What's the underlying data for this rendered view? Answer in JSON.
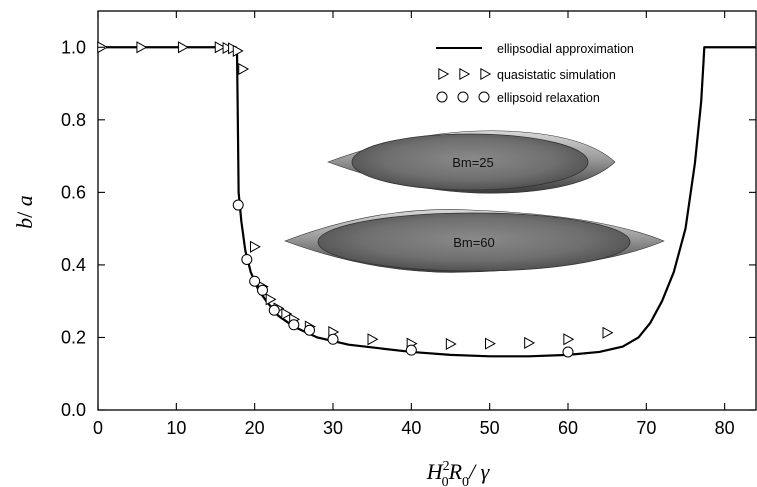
{
  "chart_data": {
    "type": "line",
    "xlabel_parts": {
      "H": "H",
      "sup": "2",
      "sub0": "0",
      "R": "R",
      "sub1": "0",
      "tail": "/ γ"
    },
    "ylabel_parts": {
      "b": "b",
      "slash": "/ ",
      "a": "a"
    },
    "xlim": [
      0,
      84
    ],
    "ylim": [
      0,
      1.1
    ],
    "xticks": [
      0,
      10,
      20,
      30,
      40,
      50,
      60,
      70,
      80
    ],
    "yticks": [
      0.0,
      0.2,
      0.4,
      0.6,
      0.8,
      1.0
    ],
    "grid": false,
    "legend_position": "top-right",
    "series": [
      {
        "name": "ellipsodial approximation",
        "style": "line",
        "color": "#000000",
        "points": [
          [
            0,
            1.0
          ],
          [
            17.6,
            1.0
          ],
          [
            17.75,
            0.98
          ],
          [
            17.85,
            0.8
          ],
          [
            17.95,
            0.6
          ],
          [
            18.3,
            0.52
          ],
          [
            18.8,
            0.44
          ],
          [
            19.5,
            0.38
          ],
          [
            20.5,
            0.33
          ],
          [
            21.5,
            0.3
          ],
          [
            23,
            0.26
          ],
          [
            25,
            0.23
          ],
          [
            28,
            0.2
          ],
          [
            32,
            0.18
          ],
          [
            36,
            0.17
          ],
          [
            40,
            0.16
          ],
          [
            45,
            0.152
          ],
          [
            50,
            0.148
          ],
          [
            55,
            0.148
          ],
          [
            60,
            0.152
          ],
          [
            64,
            0.16
          ],
          [
            67,
            0.175
          ],
          [
            69,
            0.2
          ],
          [
            70.5,
            0.24
          ],
          [
            72,
            0.3
          ],
          [
            73.5,
            0.38
          ],
          [
            75,
            0.5
          ],
          [
            76.2,
            0.68
          ],
          [
            77,
            0.85
          ],
          [
            77.3,
            0.96
          ],
          [
            77.4,
            1.0
          ],
          [
            84,
            1.0
          ]
        ]
      },
      {
        "name": "quasistatic simulation",
        "style": "triangle-right",
        "color": "#000000",
        "x": [
          0.5,
          5.5,
          10.8,
          15.5,
          16.5,
          17.2,
          17.8,
          18.5,
          20,
          21,
          22,
          23,
          24,
          25,
          27,
          30,
          35,
          40,
          45,
          50,
          55,
          60,
          65
        ],
        "y": [
          1.0,
          1.0,
          1.0,
          1.0,
          0.998,
          0.997,
          0.99,
          0.94,
          0.45,
          0.34,
          0.305,
          0.28,
          0.265,
          0.25,
          0.23,
          0.215,
          0.195,
          0.183,
          0.182,
          0.183,
          0.185,
          0.195,
          0.213
        ]
      },
      {
        "name": "ellipsoid relaxation",
        "style": "circle",
        "color": "#000000",
        "x": [
          17.9,
          19,
          20,
          21,
          22.5,
          25,
          27,
          30,
          40,
          60
        ],
        "y": [
          0.565,
          0.415,
          0.355,
          0.33,
          0.275,
          0.235,
          0.22,
          0.195,
          0.165,
          0.16
        ]
      }
    ],
    "annotations": [
      {
        "text": "Bm=25"
      },
      {
        "text": "Bm=60"
      }
    ]
  }
}
